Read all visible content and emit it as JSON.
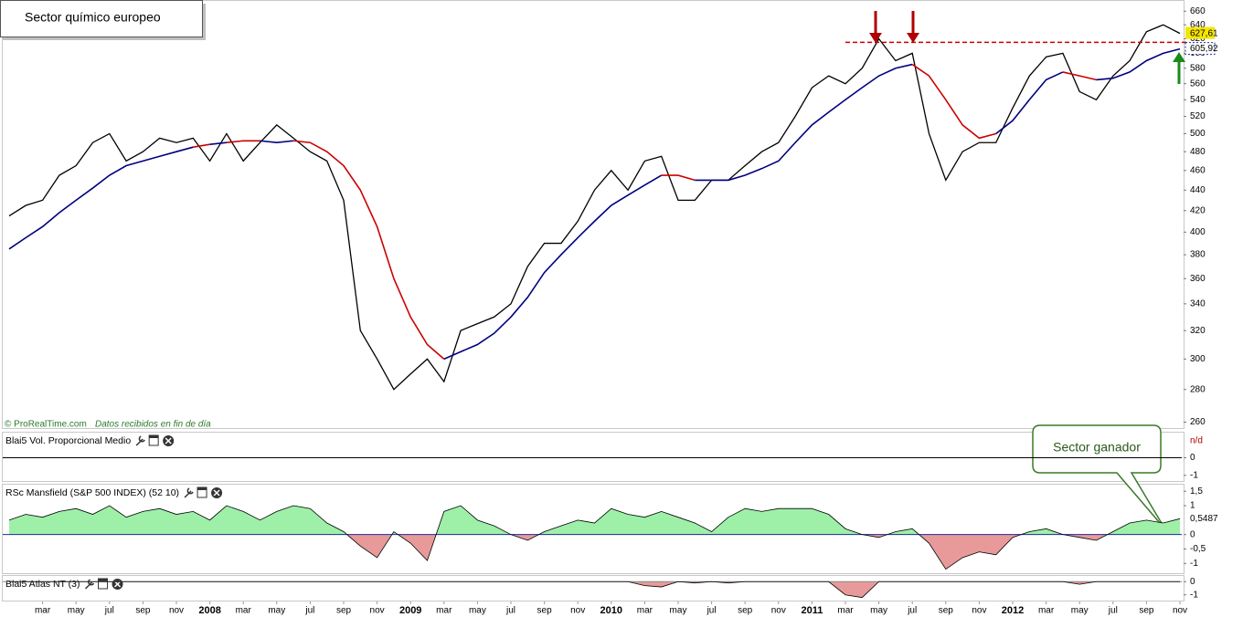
{
  "title": "Sector químico europeo",
  "watermark": "© ProRealTime.com",
  "watermark_note": "Datos recibidos en fin de día",
  "callout": "Sector ganador",
  "xtick_labels": [
    "mar",
    "may",
    "jul",
    "sep",
    "nov",
    "2008",
    "mar",
    "may",
    "jul",
    "sep",
    "nov",
    "2009",
    "mar",
    "may",
    "jul",
    "sep",
    "nov",
    "2010",
    "mar",
    "may",
    "jul",
    "sep",
    "nov",
    "2011",
    "mar",
    "may",
    "jul",
    "sep",
    "nov",
    "2012",
    "mar",
    "may",
    "jul",
    "sep",
    "nov"
  ],
  "chart_data": [
    {
      "type": "price",
      "log_scale": true,
      "ylim": [
        256,
        677
      ],
      "yticks": [
        260,
        280,
        300,
        320,
        340,
        360,
        380,
        400,
        420,
        440,
        460,
        480,
        500,
        520,
        540,
        560,
        580,
        600,
        620,
        640,
        660
      ],
      "series": [
        {
          "color": "#000000",
          "values": [
            415,
            425,
            430,
            455,
            465,
            490,
            500,
            470,
            480,
            495,
            490,
            495,
            470,
            500,
            470,
            490,
            510,
            495,
            480,
            470,
            430,
            320,
            300,
            280,
            290,
            300,
            285,
            320,
            325,
            330,
            340,
            370,
            390,
            390,
            410,
            440,
            460,
            440,
            470,
            475,
            430,
            430,
            450,
            450,
            465,
            480,
            490,
            520,
            555,
            570,
            560,
            580,
            620,
            590,
            600,
            500,
            450,
            480,
            490,
            490,
            530,
            570,
            595,
            600,
            550,
            540,
            570,
            590,
            630,
            640,
            627.61
          ]
        },
        {
          "color": "#000080",
          "color_below": "#cc0000",
          "values": [
            385,
            395,
            405,
            418,
            430,
            442,
            455,
            465,
            470,
            475,
            480,
            485,
            488,
            490,
            492,
            492,
            490,
            492,
            490,
            480,
            465,
            440,
            405,
            360,
            330,
            310,
            300,
            305,
            310,
            318,
            330,
            345,
            365,
            380,
            395,
            410,
            425,
            435,
            445,
            455,
            455,
            450,
            450,
            450,
            455,
            462,
            470,
            490,
            510,
            525,
            540,
            555,
            570,
            580,
            585,
            570,
            540,
            510,
            495,
            500,
            515,
            540,
            565,
            575,
            570,
            565,
            567,
            575,
            590,
            600,
            605.92
          ]
        }
      ],
      "resistance": 615,
      "resistance_color": "#cc0000",
      "last_price": {
        "value": 627.61,
        "label": "627,61"
      },
      "last_ma": {
        "value": 605.92,
        "label": "605,92"
      }
    },
    {
      "type": "empty",
      "title": "Blai5 Vol. Proporcional Medio",
      "status": "n/d",
      "ylim": [
        -1.37,
        1.47
      ],
      "yticks": [
        0,
        -1
      ]
    },
    {
      "type": "area",
      "title": "RSc Mansfield (S&P 500 INDEX) (52 10)",
      "ylim": [
        -1.37,
        1.76
      ],
      "yticks": [
        {
          "value": 1.5,
          "label": "1,5"
        },
        1,
        0,
        {
          "value": -0.5,
          "label": "-0,5"
        },
        -1
      ],
      "last": {
        "value": 0.5487,
        "label": "0,5487"
      },
      "color_up": "#9ef0a8",
      "color_down": "#e89a9a",
      "zero_color": "#1a2a9a",
      "values": [
        0.5,
        0.7,
        0.6,
        0.8,
        0.9,
        0.7,
        1.0,
        0.6,
        0.8,
        0.9,
        0.7,
        0.8,
        0.5,
        1.0,
        0.8,
        0.5,
        0.8,
        1.0,
        0.9,
        0.4,
        0.1,
        -0.4,
        -0.8,
        0.1,
        -0.3,
        -0.9,
        0.8,
        1.0,
        0.5,
        0.3,
        0.0,
        -0.2,
        0.1,
        0.3,
        0.5,
        0.4,
        0.9,
        0.7,
        0.6,
        0.8,
        0.6,
        0.4,
        0.1,
        0.6,
        0.9,
        0.8,
        0.9,
        0.9,
        0.9,
        0.7,
        0.2,
        0.0,
        -0.1,
        0.1,
        0.2,
        -0.3,
        -1.2,
        -0.8,
        -0.6,
        -0.7,
        -0.1,
        0.1,
        0.2,
        0.0,
        -0.1,
        -0.2,
        0.1,
        0.4,
        0.5,
        0.4,
        0.5487
      ]
    },
    {
      "type": "area",
      "title": "Blai5 Atlas NT (3)",
      "ylim": [
        -1.5,
        0.5
      ],
      "yticks": [
        0,
        -1
      ],
      "color_up": "#9ef0a8",
      "color_down": "#e89a9a",
      "zero_color": "#888888",
      "values": [
        0,
        0,
        0,
        0,
        0,
        0,
        0,
        0,
        0,
        0,
        0,
        0,
        0,
        0,
        0,
        0,
        0,
        0,
        0,
        0,
        0,
        0,
        0,
        0,
        0,
        0,
        0,
        0,
        0,
        0,
        0,
        0,
        0,
        0,
        0,
        0,
        0,
        0,
        -0.3,
        -0.4,
        0,
        -0.1,
        0,
        -0.1,
        0,
        0,
        0,
        0,
        0,
        0,
        -1,
        -1.2,
        0,
        0,
        0,
        0,
        0,
        0,
        0,
        0,
        0,
        0,
        0,
        0,
        -0.2,
        0,
        0,
        0,
        0,
        0,
        0
      ]
    }
  ]
}
